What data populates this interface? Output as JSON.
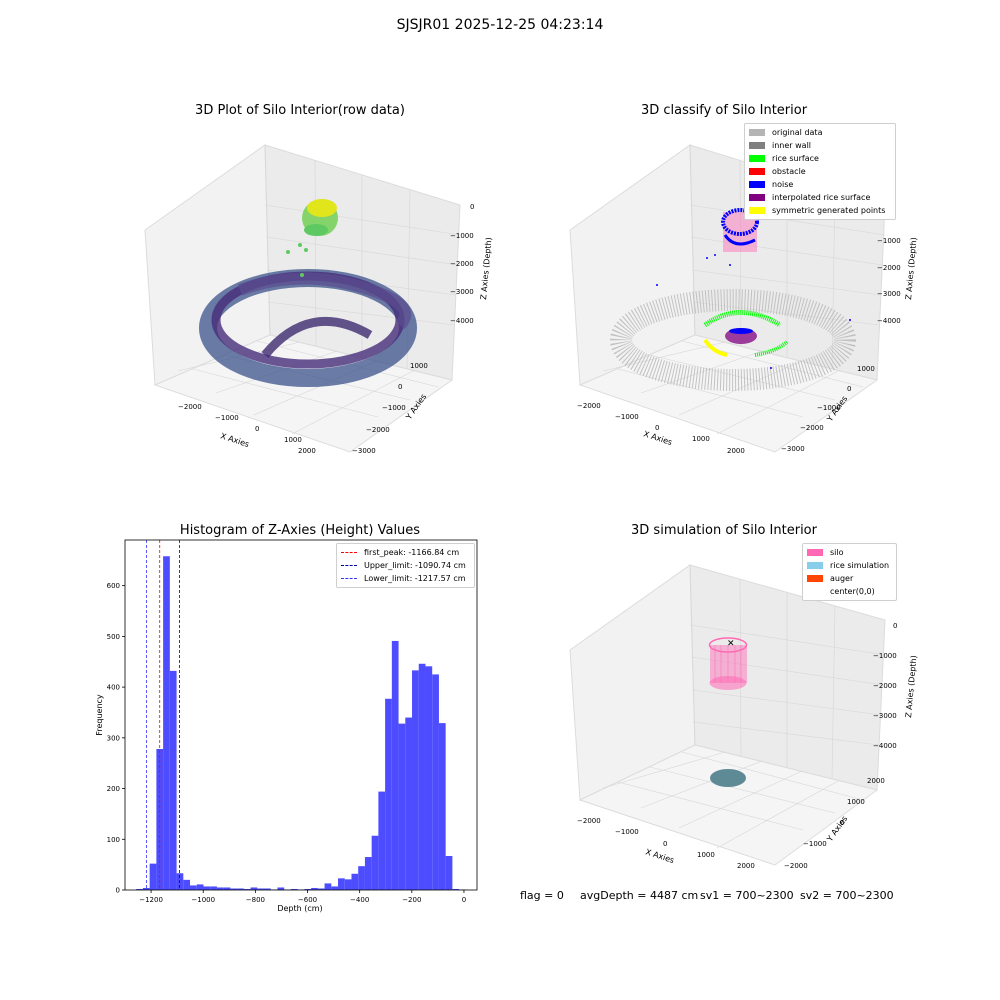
{
  "figure": {
    "title": "SJSJR01 2025-12-25 04:23:14"
  },
  "colors": {
    "hist_bar": "#4d4dff",
    "first_peak_line": "#ff0000",
    "upper_line": "#0000aa",
    "lower_line": "#3333ff"
  },
  "panels": {
    "raw": {
      "title": "3D Plot of Silo Interior(row data)",
      "xlabel": "X Axies",
      "ylabel": "Y Axies",
      "zlabel": "Z Axies (Depth)",
      "xticks": [
        "−2000",
        "−1000",
        "0",
        "1000",
        "2000"
      ],
      "yticks": [
        "1000",
        "0",
        "−1000",
        "−2000",
        "−3000"
      ],
      "zticks": [
        "0",
        "−1000",
        "−2000",
        "−3000",
        "−4000"
      ]
    },
    "classify": {
      "title": "3D classify of Silo Interior",
      "xlabel": "X Axies",
      "ylabel": "Y Axies",
      "zlabel": "Z Axies (Depth)",
      "xticks": [
        "−2000",
        "−1000",
        "0",
        "1000",
        "2000"
      ],
      "yticks": [
        "1000",
        "0",
        "−1000",
        "−2000",
        "−3000"
      ],
      "zticks": [
        "0",
        "−1000",
        "−2000",
        "−3000",
        "−4000"
      ],
      "legend": [
        {
          "label": "original data",
          "color": "#b4b4b4"
        },
        {
          "label": "inner wall",
          "color": "#808080"
        },
        {
          "label": "rice surface",
          "color": "#00ff00"
        },
        {
          "label": "obstacle",
          "color": "#ff0000"
        },
        {
          "label": "noise",
          "color": "#0000ff"
        },
        {
          "label": "interpolated rice surface",
          "color": "#800080"
        },
        {
          "label": "symmetric generated points",
          "color": "#ffff00"
        }
      ]
    },
    "simulation": {
      "title": "3D simulation of Silo Interior",
      "xlabel": "X Axies",
      "ylabel": "Y Axies",
      "zlabel": "Z Axies (Depth)",
      "xticks": [
        "−2000",
        "−1000",
        "0",
        "1000",
        "2000"
      ],
      "yticks": [
        "2000",
        "1000",
        "0",
        "−1000",
        "−2000"
      ],
      "zticks": [
        "0",
        "−1000",
        "−2000",
        "−3000",
        "−4000"
      ],
      "legend": [
        {
          "label": "silo",
          "color": "#ff69b4"
        },
        {
          "label": "rice simulation",
          "color": "#87ceeb"
        },
        {
          "label": "auger",
          "color": "#ff4500"
        },
        {
          "label": "center(0,0)",
          "color": ""
        }
      ]
    }
  },
  "status": {
    "flag": "flag = 0",
    "avg_depth": "avgDepth = 4487 cm",
    "sv1": "sv1 = 700~2300",
    "sv2": "sv2 = 700~2300"
  },
  "chart_data": {
    "type": "bar",
    "title": "Histogram of Z-Axies (Height) Values",
    "xlabel": "Depth (cm)",
    "ylabel": "Frequency",
    "xlim": [
      -1300,
      50
    ],
    "ylim": [
      0,
      690
    ],
    "xticks": [
      -1200,
      -1000,
      -800,
      -600,
      -400,
      -200,
      0
    ],
    "yticks": [
      0,
      100,
      200,
      300,
      400,
      500,
      600
    ],
    "bin_width": 25.8,
    "bin_starts": [
      -1257,
      -1231.2,
      -1205.4,
      -1179.6,
      -1153.8,
      -1128,
      -1102.2,
      -1076.4,
      -1050.6,
      -1024.8,
      -999,
      -973.2,
      -947.4,
      -921.6,
      -895.8,
      -870,
      -844.2,
      -818.4,
      -792.6,
      -766.8,
      -741,
      -715.2,
      -689.4,
      -663.6,
      -637.8,
      -612,
      -586.2,
      -560.4,
      -534.6,
      -508.8,
      -483,
      -457.2,
      -431.4,
      -405.6,
      -379.8,
      -354,
      -328.2,
      -302.4,
      -276.6,
      -250.8,
      -225,
      -199.2,
      -173.4,
      -147.6,
      -121.8,
      -96,
      -70.2,
      -44.4,
      -18.6
    ],
    "values": [
      2,
      4,
      52,
      278,
      658,
      432,
      33,
      20,
      9,
      11,
      7,
      7,
      5,
      5,
      3,
      3,
      2,
      5,
      3,
      3,
      1,
      5,
      1,
      2,
      1,
      2,
      4,
      3,
      13,
      7,
      23,
      21,
      32,
      47,
      65,
      107,
      194,
      377,
      491,
      328,
      340,
      433,
      446,
      441,
      425,
      329,
      67,
      2,
      1
    ],
    "vlines": [
      {
        "label": "first_peak: -1166.84 cm",
        "x": -1166.84,
        "color": "#ff0000"
      },
      {
        "label": "Upper_limit: -1090.74 cm",
        "x": -1090.74,
        "color": "#0000aa"
      },
      {
        "label": "Lower_limit: -1217.57 cm",
        "x": -1217.57,
        "color": "#3333ff"
      }
    ]
  }
}
